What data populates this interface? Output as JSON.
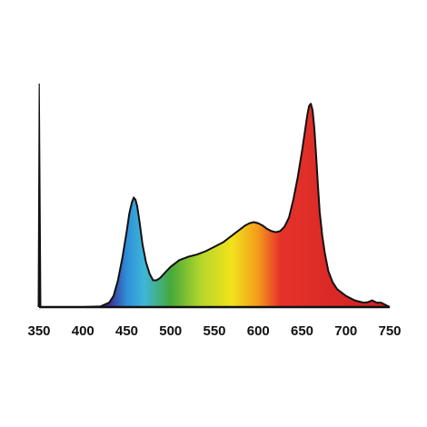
{
  "chart_data": {
    "type": "area",
    "title": "",
    "xlabel": "",
    "ylabel": "",
    "xlim": [
      350,
      750
    ],
    "ylim": [
      0,
      1.0
    ],
    "x_ticks": [
      350,
      400,
      450,
      500,
      550,
      600,
      650,
      700,
      750
    ],
    "x_tick_labels": [
      "350",
      "400",
      "450",
      "500",
      "550",
      "600",
      "650",
      "700",
      "750"
    ],
    "grid": false,
    "legend": "none",
    "fill": "visible-spectrum gradient",
    "outline_color": "#111111",
    "series": [
      {
        "x": [
          350,
          380,
          400,
          420,
          430,
          435,
          440,
          445,
          450,
          453,
          456,
          458,
          460,
          462,
          465,
          468,
          472,
          476,
          480,
          484,
          488,
          495,
          500,
          510,
          520,
          530,
          540,
          550,
          560,
          570,
          580,
          585,
          590,
          595,
          600,
          605,
          610,
          615,
          620,
          625,
          630,
          635,
          640,
          645,
          650,
          653,
          656,
          658,
          660,
          662,
          664,
          666,
          668,
          670,
          673,
          676,
          680,
          685,
          690,
          700,
          710,
          715,
          720,
          725,
          730,
          735,
          740,
          745,
          750
        ],
        "y": [
          0.0,
          0.0,
          0.0,
          0.003,
          0.02,
          0.05,
          0.12,
          0.22,
          0.34,
          0.42,
          0.47,
          0.49,
          0.48,
          0.45,
          0.37,
          0.28,
          0.2,
          0.15,
          0.12,
          0.12,
          0.13,
          0.16,
          0.18,
          0.21,
          0.225,
          0.235,
          0.25,
          0.27,
          0.29,
          0.32,
          0.35,
          0.365,
          0.375,
          0.38,
          0.375,
          0.365,
          0.35,
          0.34,
          0.335,
          0.34,
          0.36,
          0.4,
          0.48,
          0.58,
          0.7,
          0.78,
          0.86,
          0.9,
          0.91,
          0.88,
          0.8,
          0.68,
          0.55,
          0.43,
          0.32,
          0.24,
          0.16,
          0.11,
          0.08,
          0.05,
          0.03,
          0.025,
          0.02,
          0.022,
          0.03,
          0.02,
          0.02,
          0.01,
          0.0
        ]
      }
    ]
  },
  "colors": {
    "violet": "#3b2f8f",
    "blue": "#2f8fd8",
    "cyan": "#3fb6d8",
    "green": "#45a93b",
    "yellow_green": "#b6d62a",
    "yellow": "#f2e31c",
    "orange": "#f39a1b",
    "red": "#e5332a",
    "deep_red": "#cf1f22",
    "axis": "#111111"
  }
}
